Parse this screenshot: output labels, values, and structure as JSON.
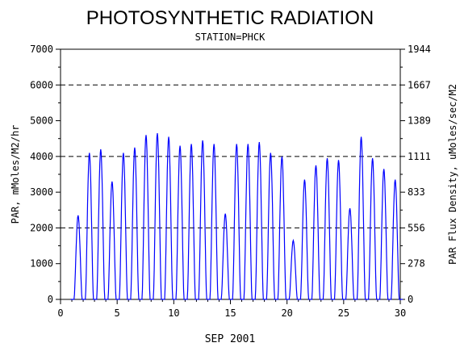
{
  "chart_data": {
    "type": "line",
    "title": "PHOTOSYNTHETIC RADIATION",
    "subtitle": "STATION=PHCK",
    "xlabel": "SEP 2001",
    "ylabel": "PAR, mMoles/M2/hr",
    "ylabel_right": "PAR Flux Density, uMoles/sec/M2",
    "xlim": [
      0,
      30
    ],
    "ylim": [
      0,
      7000
    ],
    "x_ticks": [
      "0",
      "5",
      "10",
      "15",
      "20",
      "25",
      "30"
    ],
    "y_ticks": [
      "0",
      "1000",
      "2000",
      "3000",
      "4000",
      "5000",
      "6000",
      "7000"
    ],
    "y_ticks_right": [
      "0",
      "278",
      "556",
      "833",
      "1111",
      "1389",
      "1667",
      "1944"
    ],
    "dashed_gridlines_y": [
      2000,
      4000,
      6000
    ],
    "line_color": "#0000ff",
    "series": [
      {
        "x": [
          1.55,
          2.55,
          3.55,
          4.55,
          5.55,
          6.55,
          7.55,
          8.55,
          9.55,
          10.55,
          11.55,
          12.55,
          13.55,
          14.55,
          15.55,
          16.55,
          17.55,
          18.55,
          19.55,
          20.55,
          21.55,
          22.55,
          23.55,
          24.55,
          25.55,
          26.55,
          27.55,
          28.55,
          29.55
        ],
        "values": [
          2350,
          4100,
          4200,
          3300,
          4100,
          4250,
          4600,
          4650,
          4550,
          4300,
          4350,
          4450,
          4350,
          2400,
          4350,
          4350,
          4400,
          4100,
          4000,
          1650,
          3350,
          3750,
          3950,
          3900,
          2550,
          4550,
          3950,
          3650,
          3350
        ]
      }
    ]
  }
}
